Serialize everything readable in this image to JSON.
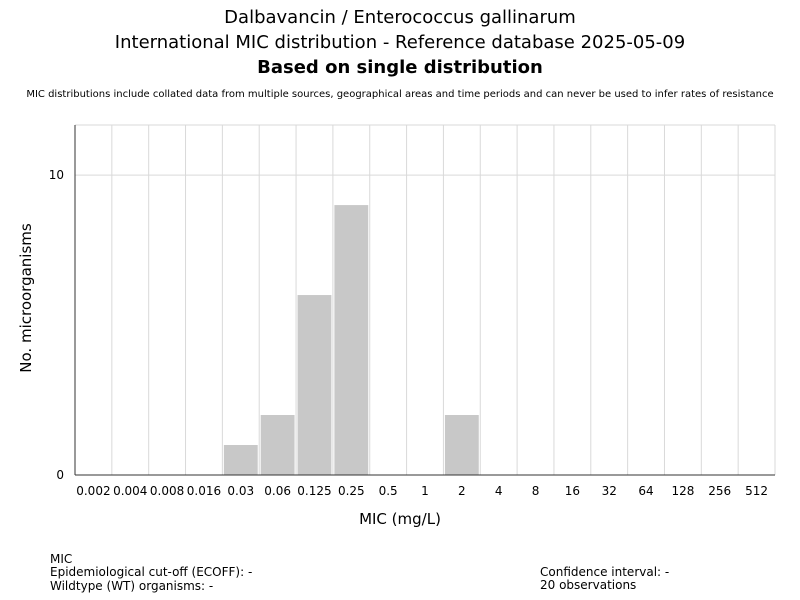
{
  "chart_data": {
    "type": "bar",
    "title": [
      "Dalbavancin / Enterococcus gallinarum",
      "International MIC distribution - Reference database 2025-05-09",
      "Based on single distribution"
    ],
    "subtitle": "MIC distributions include collated data from multiple sources, geographical areas and time periods and can never be used to infer rates of resistance",
    "xlabel": "MIC (mg/L)",
    "ylabel": "No. microorganisms",
    "categories": [
      "0.002",
      "0.004",
      "0.008",
      "0.016",
      "0.03",
      "0.06",
      "0.125",
      "0.25",
      "0.5",
      "1",
      "2",
      "4",
      "8",
      "16",
      "32",
      "64",
      "128",
      "256",
      "512"
    ],
    "values": [
      0,
      0,
      0,
      0,
      1,
      2,
      6,
      9,
      0,
      0,
      2,
      0,
      0,
      0,
      0,
      0,
      0,
      0,
      0
    ],
    "ylim": [
      0,
      11.67
    ],
    "yticks": [
      "0",
      "10"
    ],
    "grid": true,
    "bar_color": "#c8c8c8"
  },
  "footer": {
    "mic_label": "MIC",
    "ecoff": "Epidemiological cut-off (ECOFF): -",
    "wildtype": "Wildtype (WT) organisms:  -",
    "confidence": "Confidence interval: -",
    "observations": "20 observations"
  }
}
